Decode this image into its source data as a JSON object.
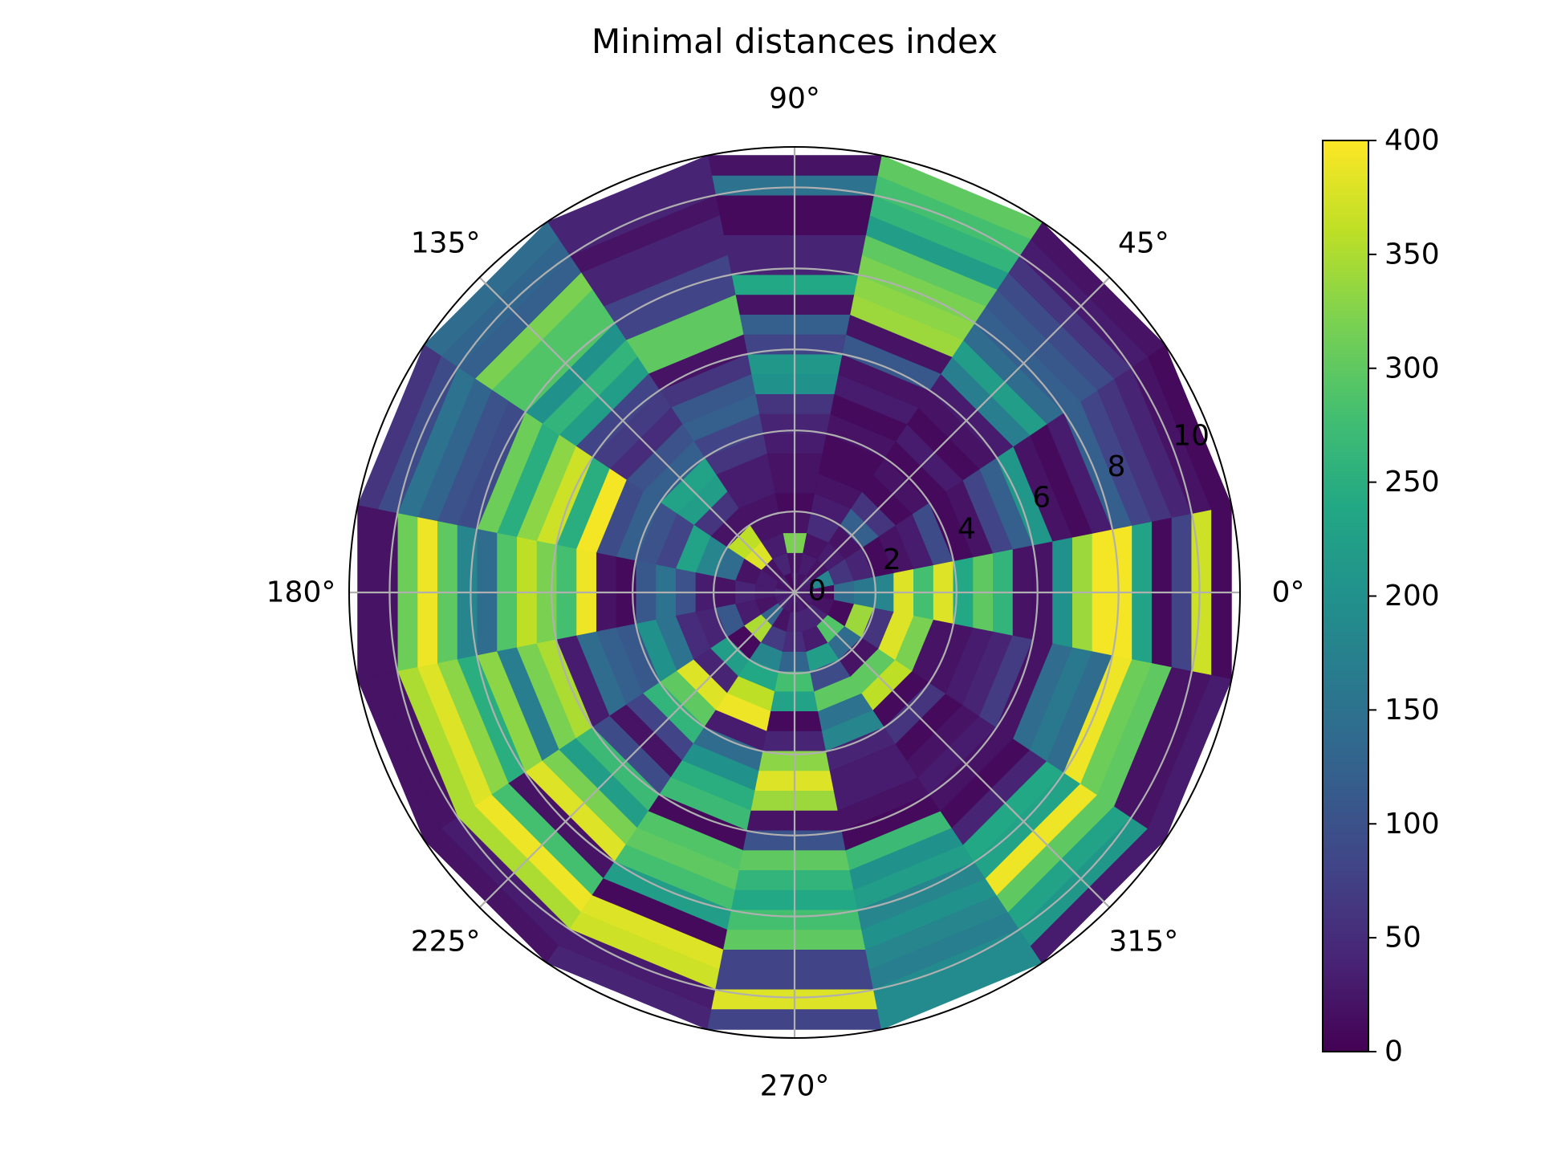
{
  "chart_data": {
    "type": "heatmap",
    "projection": "polar",
    "title": "Minimal distances index",
    "theta_tick_labels": [
      "0°",
      "45°",
      "90°",
      "135°",
      "180°",
      "225°",
      "270°",
      "315°"
    ],
    "r_tick_labels": [
      "0",
      "2",
      "4",
      "6",
      "8",
      "10"
    ],
    "r_ticks": [
      0,
      2,
      4,
      6,
      8,
      10
    ],
    "rlim": [
      0,
      11
    ],
    "grid": true,
    "colormap": "viridis",
    "color_range": [
      0,
      400
    ],
    "colorbar": {
      "tick_values": [
        0,
        50,
        100,
        150,
        200,
        250,
        300,
        350,
        400
      ],
      "tick_labels": [
        "0",
        "50",
        "100",
        "150",
        "200",
        "250",
        "300",
        "350",
        "400"
      ]
    },
    "theta_bins_deg": [
      -11.25,
      11.25,
      33.75,
      56.25,
      78.75,
      101.25,
      123.75,
      146.25,
      168.75,
      191.25,
      213.75,
      236.25,
      258.75,
      281.25,
      303.75,
      326.25,
      348.75
    ],
    "r_bins": [
      0,
      0.5,
      1,
      1.5,
      2,
      2.5,
      3,
      3.5,
      4,
      4.5,
      5,
      5.5,
      6,
      6.5,
      7,
      7.5,
      8,
      8.5,
      9,
      9.5,
      10,
      10.5,
      11
    ],
    "values": [
      [
        20,
        10,
        140,
        160,
        180,
        380,
        280,
        380,
        240,
        300,
        260,
        20,
        20,
        200,
        340,
        395,
        395,
        230,
        10,
        80,
        370,
        10
      ],
      [
        30,
        180,
        60,
        40,
        10,
        20,
        30,
        90,
        10,
        20,
        80,
        120,
        210,
        20,
        10,
        30,
        120,
        80,
        60,
        40,
        20,
        10
      ],
      [
        40,
        20,
        30,
        20,
        120,
        60,
        10,
        20,
        10,
        30,
        10,
        20,
        30,
        170,
        220,
        140,
        120,
        110,
        90,
        60,
        30,
        20
      ],
      [
        20,
        30,
        20,
        50,
        30,
        20,
        10,
        10,
        20,
        10,
        30,
        20,
        110,
        20,
        340,
        330,
        320,
        300,
        220,
        260,
        280,
        300
      ],
      [
        30,
        20,
        320,
        20,
        10,
        20,
        20,
        30,
        40,
        60,
        200,
        210,
        80,
        120,
        20,
        240,
        40,
        40,
        10,
        10,
        150,
        20
      ],
      [
        10,
        40,
        30,
        20,
        20,
        30,
        30,
        60,
        80,
        120,
        110,
        60,
        20,
        300,
        300,
        80,
        80,
        40,
        40,
        20,
        40,
        40
      ],
      [
        30,
        20,
        380,
        360,
        20,
        60,
        220,
        230,
        120,
        100,
        50,
        70,
        80,
        220,
        260,
        200,
        290,
        290,
        320,
        120,
        130,
        140
      ],
      [
        20,
        30,
        20,
        140,
        180,
        230,
        80,
        100,
        120,
        90,
        395,
        250,
        370,
        330,
        250,
        310,
        90,
        100,
        130,
        150,
        90,
        60
      ],
      [
        40,
        30,
        40,
        20,
        30,
        100,
        150,
        110,
        10,
        20,
        390,
        280,
        320,
        360,
        290,
        140,
        180,
        300,
        390,
        310,
        20,
        20
      ],
      [
        30,
        20,
        30,
        110,
        40,
        50,
        150,
        200,
        110,
        120,
        140,
        30,
        350,
        320,
        170,
        330,
        250,
        330,
        380,
        350,
        20,
        20
      ],
      [
        50,
        130,
        350,
        10,
        220,
        40,
        380,
        300,
        260,
        80,
        20,
        90,
        270,
        220,
        320,
        380,
        20,
        280,
        390,
        350,
        30,
        20
      ],
      [
        30,
        20,
        70,
        180,
        240,
        360,
        390,
        30,
        140,
        200,
        250,
        270,
        10,
        290,
        300,
        280,
        220,
        10,
        380,
        370,
        30,
        40
      ],
      [
        20,
        40,
        50,
        130,
        280,
        230,
        10,
        40,
        330,
        380,
        340,
        20,
        100,
        300,
        260,
        240,
        280,
        300,
        80,
        80,
        380,
        80
      ],
      [
        30,
        40,
        30,
        220,
        90,
        300,
        150,
        180,
        40,
        30,
        30,
        20,
        10,
        270,
        200,
        220,
        180,
        200,
        180,
        170,
        190,
        190
      ],
      [
        20,
        40,
        290,
        140,
        20,
        300,
        360,
        10,
        60,
        10,
        20,
        30,
        20,
        10,
        40,
        240,
        230,
        390,
        300,
        230,
        210,
        30
      ],
      [
        30,
        20,
        10,
        340,
        60,
        380,
        320,
        20,
        20,
        30,
        40,
        70,
        20,
        140,
        160,
        140,
        390,
        310,
        300,
        20,
        20,
        30
      ],
      [
        60,
        20,
        20,
        40,
        20,
        80,
        360,
        30,
        10,
        20,
        10,
        60,
        30,
        180,
        290,
        330,
        40,
        140,
        300,
        10,
        50,
        20
      ]
    ]
  }
}
